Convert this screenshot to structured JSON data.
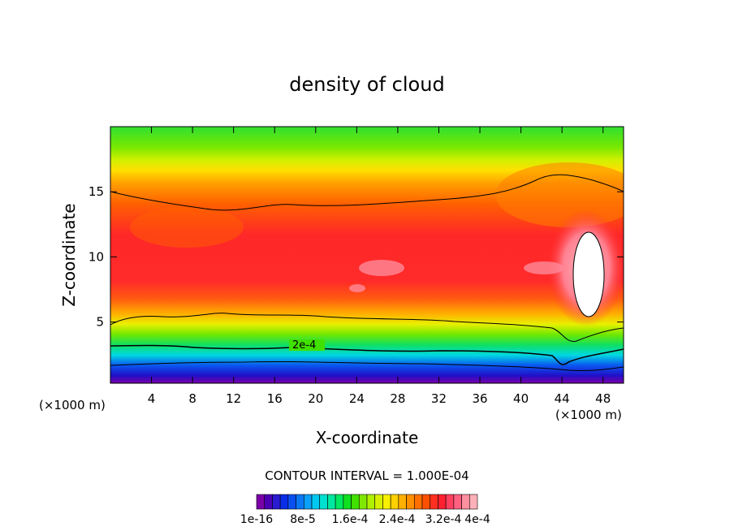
{
  "chart_data": {
    "type": "heatmap",
    "title": "density of cloud",
    "xlabel": "X-coordinate",
    "ylabel": "Z-coordinate",
    "x_unit": "(×1000 m)",
    "x_ticks": [
      4,
      8,
      12,
      16,
      20,
      24,
      28,
      32,
      36,
      40,
      44,
      48
    ],
    "y_ticks": [
      5,
      10,
      15
    ],
    "xlim": [
      0,
      50
    ],
    "ylim": [
      0.3,
      20
    ],
    "contour_interval": "CONTOUR INTERVAL = 1.000E-04",
    "contour_label": "2e-4",
    "colorbar_labels": [
      "1e-16",
      "8e-5",
      "1.6e-4",
      "2.4e-4",
      "3.2e-4",
      "4e-4"
    ],
    "colorbar_colors": [
      "#7a00a8",
      "#4b00b4",
      "#2a1ad0",
      "#0a2ee8",
      "#0a50f0",
      "#0a78f5",
      "#0aa0f8",
      "#00c8f0",
      "#00e0d0",
      "#00e8a0",
      "#00e860",
      "#10e020",
      "#40e000",
      "#80e800",
      "#b0f000",
      "#d8f000",
      "#f8f000",
      "#ffd000",
      "#ffb000",
      "#ff9000",
      "#ff7000",
      "#ff5000",
      "#ff3020",
      "#ff2030",
      "#ff4060",
      "#ff6080",
      "#ff90a0",
      "#ffb0b8"
    ]
  }
}
